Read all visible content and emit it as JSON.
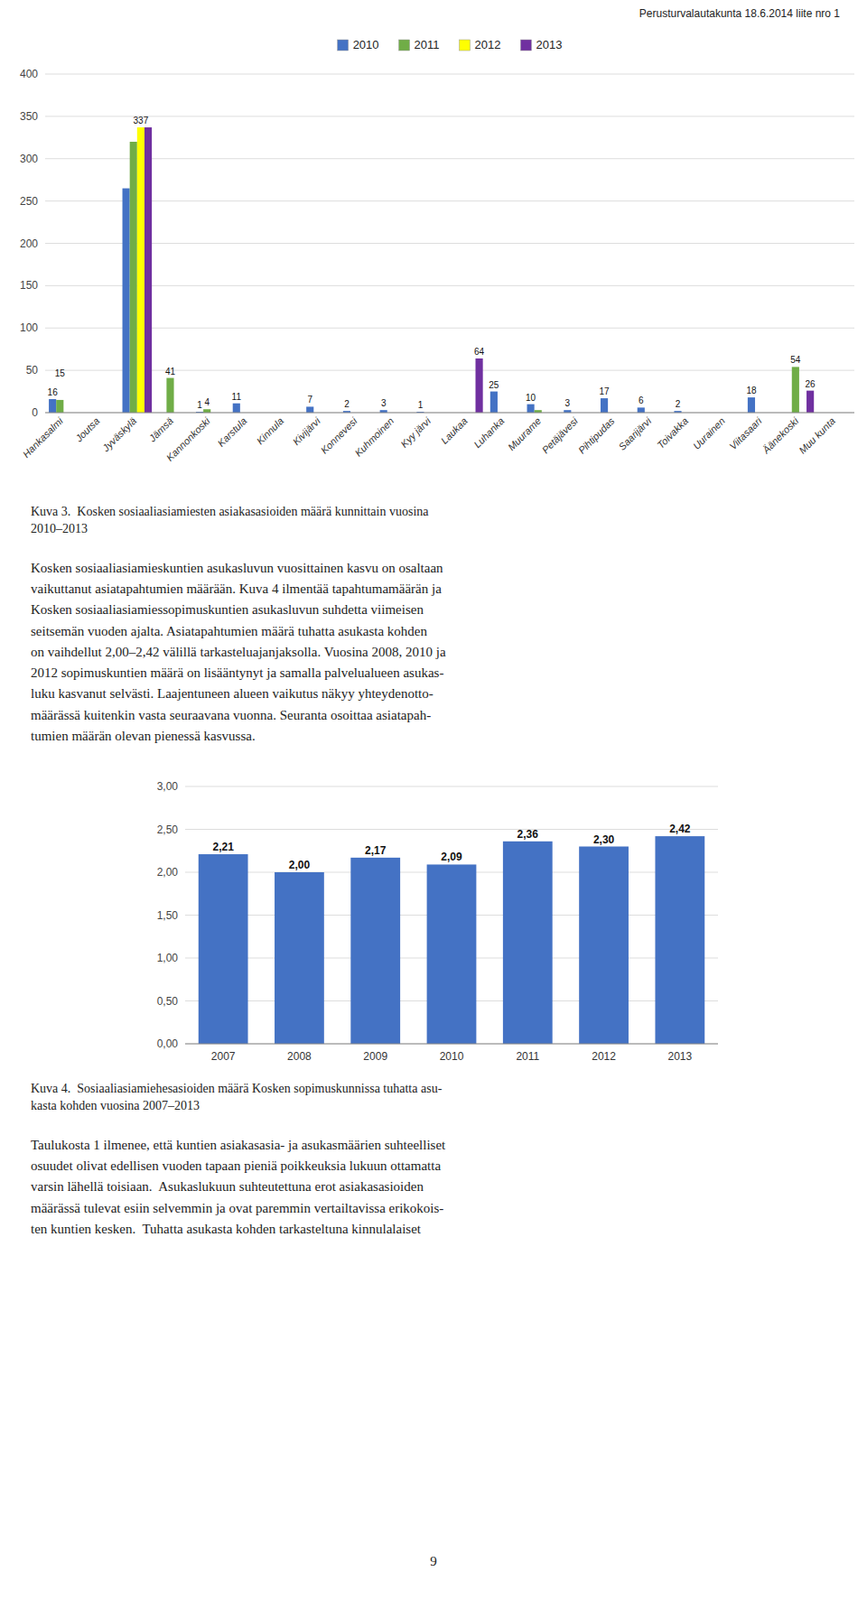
{
  "header": "Perusturvalautakunta 18.6.2014 liite nro 1",
  "chart_data": [
    {
      "type": "bar",
      "title": "Kuva 3.  Kosken sosiaaliasiamiesten asiakasasioiden määrä kunnittain vuosina\n2010–2013",
      "categories": [
        "Hankasalmi",
        "Joutsa",
        "Jyväskylä",
        "Jämsä",
        "Kannonkoski",
        "Karstula",
        "Kinnula",
        "Kivijärvi",
        "Konnevesi",
        "Kuhmoinen",
        "Kyy järvi",
        "Laukaa",
        "Luhanka",
        "Muurame",
        "Petäjävesi",
        "Pihtipudas",
        "Saarijärvi",
        "Toivakka",
        "Uurainen",
        "Viitasaari",
        "Äänekoski",
        "Muu kunta"
      ],
      "series": [
        {
          "name": "2010",
          "color": "#4472C4",
          "values": [
            16,
            0,
            265,
            0,
            1,
            11,
            0,
            7,
            2,
            3,
            1,
            0,
            25,
            10,
            3,
            17,
            6,
            2,
            0,
            18,
            0,
            0
          ],
          "value_labels": [
            "16",
            null,
            null,
            null,
            "1",
            "11",
            null,
            "7",
            "2",
            "3",
            "1",
            null,
            "25",
            "10",
            "3",
            "17",
            "6",
            "2",
            null,
            "18",
            null,
            null
          ]
        },
        {
          "name": "2011",
          "color": "#70AD47",
          "values": [
            15,
            0,
            320,
            41,
            4,
            0,
            0,
            0,
            0,
            0,
            0,
            0,
            0,
            3,
            0,
            0,
            0,
            0,
            0,
            0,
            54,
            0
          ],
          "value_labels": [
            "15",
            null,
            null,
            "41",
            "4",
            null,
            null,
            null,
            null,
            null,
            null,
            null,
            null,
            null,
            null,
            null,
            null,
            null,
            null,
            null,
            "54",
            null
          ]
        },
        {
          "name": "2012",
          "color": "#FFFF00",
          "values": [
            0,
            0,
            337,
            0,
            0,
            0,
            0,
            0,
            0,
            0,
            0,
            0,
            0,
            0,
            0,
            0,
            0,
            0,
            0,
            0,
            0,
            0
          ],
          "value_labels": [
            null,
            null,
            "337",
            null,
            null,
            null,
            null,
            null,
            null,
            null,
            null,
            null,
            null,
            null,
            null,
            null,
            null,
            null,
            null,
            null,
            null,
            null
          ]
        },
        {
          "name": "2013",
          "color": "#7030A0",
          "values": [
            0,
            0,
            337,
            0,
            0,
            0,
            0,
            0,
            0,
            0,
            0,
            64,
            0,
            0,
            0,
            0,
            0,
            0,
            0,
            0,
            26,
            0
          ],
          "value_labels": [
            null,
            null,
            null,
            null,
            null,
            null,
            null,
            null,
            null,
            null,
            null,
            "64",
            null,
            null,
            null,
            null,
            null,
            null,
            null,
            null,
            "26",
            null
          ]
        }
      ],
      "ylim": [
        0,
        400
      ],
      "yticks": [
        0,
        50,
        100,
        150,
        200,
        250,
        300,
        350,
        400
      ],
      "grid": true,
      "legend": "top"
    },
    {
      "type": "bar",
      "title": "Kuva 4.  Sosiaaliasiamiehesasioiden määrä Kosken sopimuskunnissa tuhatta asu-\nkasta kohden vuosina 2007–2013",
      "categories": [
        "2007",
        "2008",
        "2009",
        "2010",
        "2011",
        "2012",
        "2013"
      ],
      "values": [
        2.21,
        2.0,
        2.17,
        2.09,
        2.36,
        2.3,
        2.42
      ],
      "value_labels": [
        "2,21",
        "2,00",
        "2,17",
        "2,09",
        "2,36",
        "2,30",
        "2,42"
      ],
      "color": "#4472C4",
      "ylim": [
        0.0,
        3.0
      ],
      "yticks": [
        {
          "value": 0.0,
          "label": "0,00"
        },
        {
          "value": 0.5,
          "label": "0,50"
        },
        {
          "value": 1.0,
          "label": "1,00"
        },
        {
          "value": 1.5,
          "label": "1,50"
        },
        {
          "value": 2.0,
          "label": "2,00"
        },
        {
          "value": 2.5,
          "label": "2,50"
        },
        {
          "value": 3.0,
          "label": "3,00"
        }
      ],
      "grid": true
    }
  ],
  "body_texts": [
    [
      "Kosken sosiaaliasiamieskuntien asukasluvun vuosittainen kasvu on osaltaan",
      "vaikuttanut asiatapahtumien määrään. Kuva 4 ilmentää tapahtumamäärän ja",
      "Kosken sosiaaliasiamiessopimuskuntien asukasluvun suhdetta viimeisen",
      "seitsemän vuoden ajalta. Asiatapahtumien määrä tuhatta asukasta kohden",
      "on vaihdellut 2,00–2,42 välillä tarkasteluajanjaksolla. Vuosina 2008, 2010 ja",
      "2012 sopimuskuntien määrä on lisääntynyt ja samalla palvelualueen asukas-",
      "luku kasvanut selvästi. Laajentuneen alueen vaikutus näkyy yhteydenotto-",
      "määrässä kuitenkin vasta seuraavana vuonna. Seuranta osoittaa asiatapah-",
      "tumien määrän olevan pienessä kasvussa."
    ],
    [
      "Taulukosta 1 ilmenee, että kuntien asiakasasia- ja asukasmäärien suhteelliset",
      "osuudet olivat edellisen vuoden tapaan pieniä poikkeuksia lukuun ottamatta",
      "varsin lähellä toisiaan.  Asukaslukuun suhteutettuna erot asiakasasioiden",
      "määrässä tulevat esiin selvemmin ja ovat paremmin vertailtavissa erikokois-",
      "ten kuntien kesken.  Tuhatta asukasta kohden tarkasteltuna kinnulalaiset"
    ]
  ],
  "page_number": "9"
}
